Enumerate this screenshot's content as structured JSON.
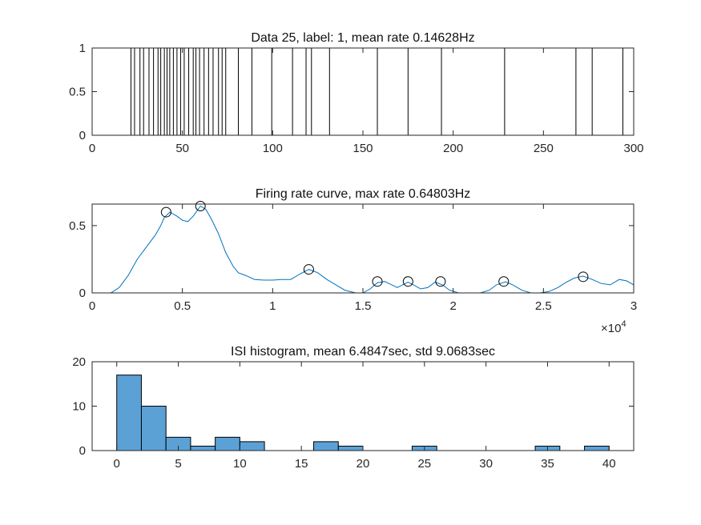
{
  "chart_data": [
    {
      "type": "raster",
      "title": "Data 25, label: 1, mean rate 0.14628Hz",
      "xlim": [
        0,
        300
      ],
      "ylim": [
        0,
        1
      ],
      "xticks": [
        0,
        50,
        100,
        150,
        200,
        250,
        300
      ],
      "xtick_labels": [
        "0",
        "50",
        "100",
        "150",
        "200",
        "250",
        "300"
      ],
      "yticks": [
        0,
        0.5,
        1
      ],
      "ytick_labels": [
        "0",
        "0.5",
        "1"
      ],
      "spike_times": [
        21.5,
        23.5,
        26.5,
        28.5,
        31.5,
        34,
        36.5,
        38,
        40,
        41.5,
        43,
        45,
        47,
        49,
        51,
        53.5,
        56,
        57.5,
        59.5,
        62,
        64.5,
        67,
        70,
        72,
        74,
        81,
        88.5,
        99.5,
        111,
        118.5,
        121.5,
        131.5,
        158,
        175,
        193.5,
        228.5,
        268,
        277,
        294
      ]
    },
    {
      "type": "line",
      "title": "Firing rate curve, max rate 0.64803Hz",
      "xlim": [
        0,
        30000
      ],
      "ylim": [
        0,
        0.66
      ],
      "xticks": [
        0,
        5000,
        10000,
        15000,
        20000,
        25000,
        30000
      ],
      "xtick_labels": [
        "0",
        "0.5",
        "1",
        "1.5",
        "2",
        "2.5",
        "3"
      ],
      "x_exponent_base": "×10",
      "x_exponent_power": "4",
      "yticks": [
        0,
        0.5
      ],
      "ytick_labels": [
        "0",
        "0.5"
      ],
      "curve": {
        "x": [
          0,
          1000,
          1100,
          1500,
          2000,
          2500,
          3000,
          3500,
          3800,
          4000,
          4300,
          4700,
          5000,
          5300,
          5600,
          6000,
          6300,
          6600,
          7000,
          7400,
          7800,
          8100,
          8500,
          9000,
          9500,
          10000,
          10500,
          11000,
          11500,
          12000,
          12500,
          13000,
          13500,
          14000,
          14600,
          15000,
          15400,
          15800,
          16200,
          16600,
          16900,
          17200,
          17500,
          17800,
          18200,
          18600,
          19000,
          19400,
          19800,
          20300,
          20900,
          21500,
          22000,
          22400,
          22900,
          23300,
          23800,
          24300,
          24800,
          25300,
          25800,
          26200,
          26700,
          27200,
          27700,
          28200,
          28700,
          29200,
          29600,
          30000
        ],
        "y": [
          0,
          0,
          0.005,
          0.04,
          0.13,
          0.25,
          0.34,
          0.43,
          0.5,
          0.56,
          0.6,
          0.57,
          0.54,
          0.53,
          0.57,
          0.645,
          0.62,
          0.55,
          0.44,
          0.3,
          0.2,
          0.15,
          0.13,
          0.1,
          0.095,
          0.095,
          0.1,
          0.1,
          0.14,
          0.175,
          0.15,
          0.1,
          0.06,
          0.02,
          0,
          0,
          0.03,
          0.075,
          0.085,
          0.06,
          0.04,
          0.06,
          0.08,
          0.06,
          0.03,
          0.04,
          0.08,
          0.06,
          0.02,
          0,
          0,
          0,
          0.02,
          0.06,
          0.082,
          0.06,
          0.02,
          0,
          0,
          0.01,
          0.04,
          0.075,
          0.11,
          0.125,
          0.1,
          0.07,
          0.06,
          0.1,
          0.09,
          0.06
        ]
      },
      "peaks": {
        "x": [
          4100,
          6000,
          12000,
          15800,
          17500,
          19300,
          22800,
          27200
        ],
        "y": [
          0.6,
          0.645,
          0.175,
          0.085,
          0.085,
          0.085,
          0.085,
          0.12
        ]
      }
    },
    {
      "type": "histogram",
      "title": "ISI histogram, mean 6.4847sec, std 9.0683sec",
      "xlim": [
        -2,
        42
      ],
      "ylim": [
        0,
        20
      ],
      "xticks": [
        0,
        5,
        10,
        15,
        20,
        25,
        30,
        35,
        40
      ],
      "xtick_labels": [
        "0",
        "5",
        "10",
        "15",
        "20",
        "25",
        "30",
        "35",
        "40"
      ],
      "yticks": [
        0,
        10,
        20
      ],
      "ytick_labels": [
        "0",
        "10",
        "20"
      ],
      "bin_edges": [
        0,
        2,
        4,
        6,
        8,
        10,
        12,
        14,
        16,
        18,
        20,
        22,
        24,
        26,
        28,
        30,
        32,
        34,
        36,
        38,
        40
      ],
      "counts": [
        17,
        10,
        3,
        1,
        3,
        2,
        0,
        0,
        2,
        1,
        0,
        0,
        1,
        0,
        0,
        0,
        0,
        1,
        0,
        1
      ]
    }
  ]
}
